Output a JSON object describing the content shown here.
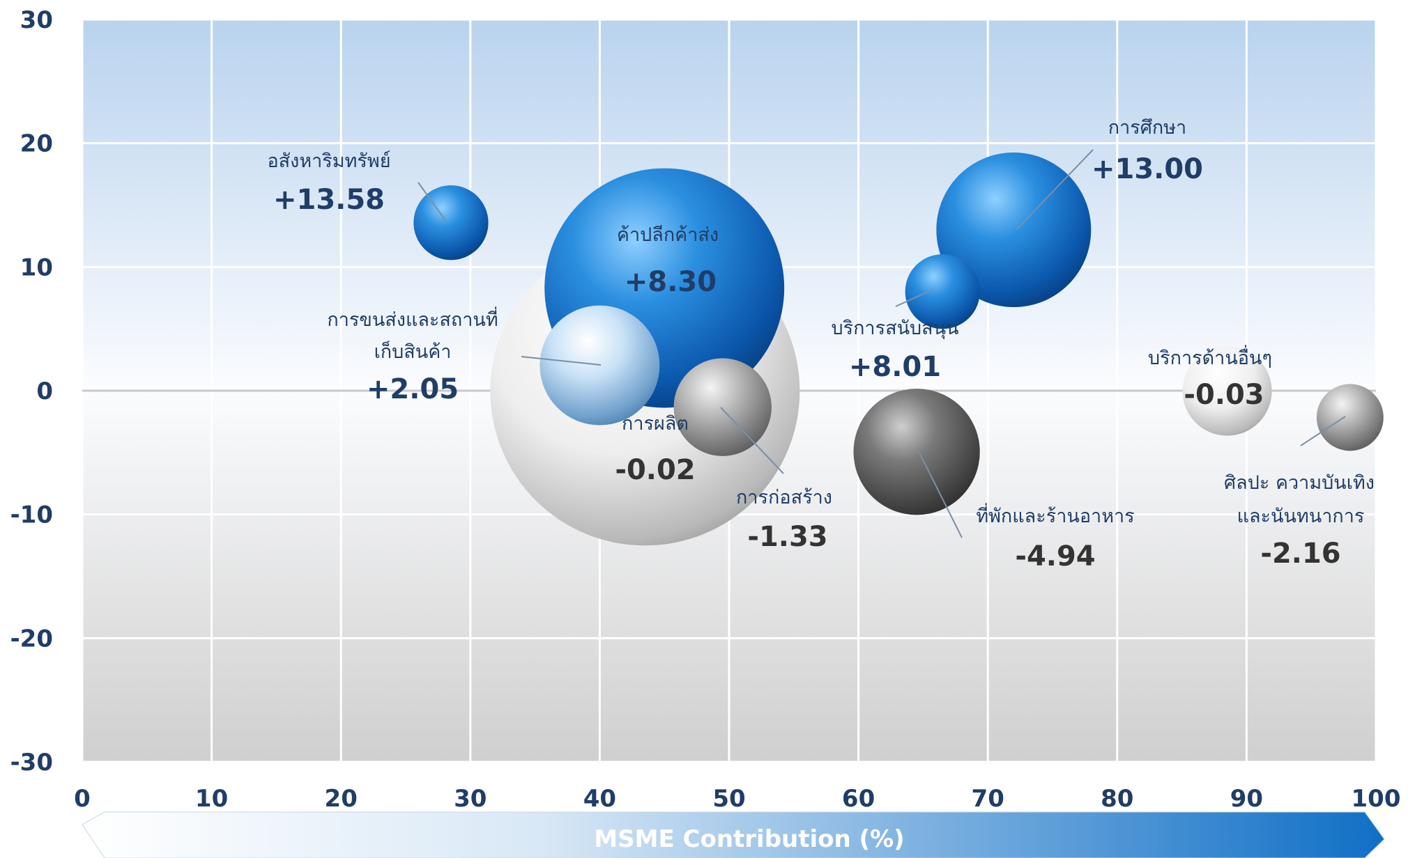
{
  "chart_data": {
    "type": "scatter",
    "subtype": "bubble",
    "title": "",
    "xlabel": "MSME Contribution (%)",
    "ylabel": "",
    "xlim": [
      0,
      100
    ],
    "ylim": [
      -30,
      30
    ],
    "xticks": [
      "0",
      "10",
      "20",
      "30",
      "40",
      "50",
      "60",
      "70",
      "80",
      "90",
      "100"
    ],
    "yticks": [
      "30",
      "20",
      "10",
      "0",
      "-10",
      "-20",
      "-30"
    ],
    "grid": true,
    "legend": "none",
    "colors": {
      "positive": "#1f7fd6",
      "negative": "#8a8a8a",
      "text": "#1f3d66",
      "banner_start": "#ffffff",
      "banner_end": "#0f6fc6"
    },
    "points": [
      {
        "name": "อสังหาริมทรัพย์",
        "value_label": "+13.58",
        "x": 28.5,
        "y": 13.58,
        "size": 0.35,
        "tone": "blue"
      },
      {
        "name": "การผลิต",
        "value_label": "-0.02",
        "x": 43.5,
        "y": -0.02,
        "size": 6.0,
        "tone": "white"
      },
      {
        "name": "ค้าปลีกค้าส่ง",
        "value_label": "+8.30",
        "x": 45.0,
        "y": 8.3,
        "size": 3.6,
        "tone": "blue"
      },
      {
        "name": "การขนส่งและสถานที่ เก็บสินค้า",
        "value_label": "+2.05",
        "x": 40.0,
        "y": 2.05,
        "size": 0.9,
        "tone": "lightblue"
      },
      {
        "name": "การก่อสร้าง",
        "value_label": "-1.33",
        "x": 49.5,
        "y": -1.33,
        "size": 0.6,
        "tone": "grey"
      },
      {
        "name": "บริการสนับสนุน",
        "value_label": "+8.01",
        "x": 66.5,
        "y": 8.01,
        "size": 0.35,
        "tone": "blue"
      },
      {
        "name": "การศึกษา",
        "value_label": "+13.00",
        "x": 72.0,
        "y": 13.0,
        "size": 1.5,
        "tone": "blue"
      },
      {
        "name": "ที่พักและร้านอาหาร",
        "value_label": "-4.94",
        "x": 64.5,
        "y": -4.94,
        "size": 1.0,
        "tone": "darkgrey"
      },
      {
        "name": "บริการด้านอื่นๆ",
        "value_label": "-0.03",
        "x": 88.5,
        "y": -0.03,
        "size": 0.5,
        "tone": "white"
      },
      {
        "name": "ศิลปะ ความบันเทิง และนันทนาการ",
        "value_label": "-2.16",
        "x": 98.0,
        "y": -2.16,
        "size": 0.28,
        "tone": "grey"
      }
    ]
  }
}
